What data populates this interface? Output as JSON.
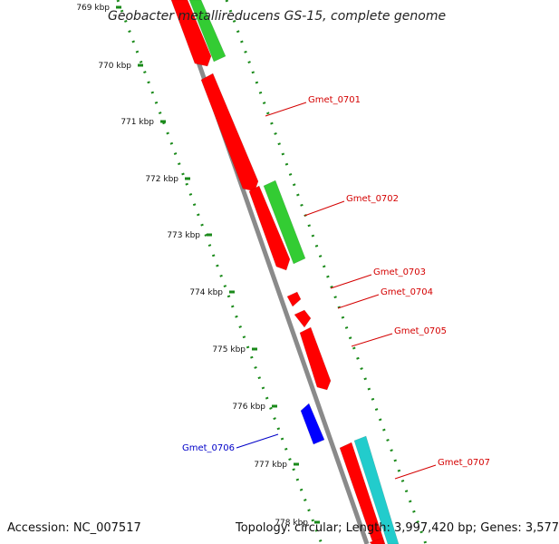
{
  "title": "Geobacter metallireducens GS-15, complete genome",
  "footer": {
    "accession": "Accession: NC_007517",
    "summary": "Topology: circular; Length: 3,997,420 bp; Genes: 3,577"
  },
  "scale": {
    "ticks": [
      "769 kbp",
      "770 kbp",
      "771 kbp",
      "772 kbp",
      "773 kbp",
      "774 kbp",
      "775 kbp",
      "776 kbp",
      "777 kbp",
      "778 kbp"
    ]
  },
  "labels": [
    {
      "name": "Gmet_0701",
      "color": "#d40000"
    },
    {
      "name": "Gmet_0702",
      "color": "#d40000"
    },
    {
      "name": "Gmet_0703",
      "color": "#d40000"
    },
    {
      "name": "Gmet_0704",
      "color": "#d40000"
    },
    {
      "name": "Gmet_0705",
      "color": "#d40000"
    },
    {
      "name": "Gmet_0706",
      "color": "#0000c8"
    },
    {
      "name": "Gmet_0707",
      "color": "#d40000"
    }
  ],
  "colors": {
    "forward_gene": "#ff0000",
    "reverse_gene": "#0000ff",
    "green_feature": "#33cc33",
    "cyan_feature": "#22cccc",
    "backbone": "#888888",
    "dotted_track": "#1a8a1a"
  }
}
